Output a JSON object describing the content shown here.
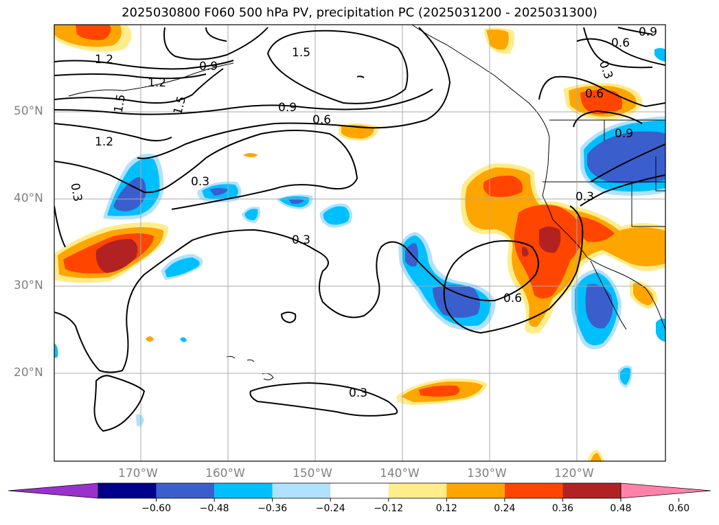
{
  "title": "2025030800 F060 500 hPa PV, precipitation PC (2025031200 - 2025031300)",
  "latitude_labels": [
    "50°N",
    "40°N",
    "30°N",
    "20°N"
  ],
  "longitude_labels": [
    "170°W",
    "160°W",
    "150°W",
    "140°W",
    "130°W",
    "120°W"
  ],
  "contour_labels": [
    "1.2",
    "1.2",
    "0.9",
    "1.5",
    "1.5",
    "1.5",
    "0.9",
    "0.6",
    "1.2",
    "0.3",
    "0.3",
    "0.3",
    "0.3",
    "0.6",
    "0.3",
    "0.6",
    "0.9",
    "0.3",
    "0.6",
    "0.9"
  ],
  "colorbar": {
    "ticks": [
      "−0.60",
      "−0.48",
      "−0.36",
      "−0.24",
      "−0.12",
      "0.12",
      "0.24",
      "0.36",
      "0.48",
      "0.60"
    ],
    "colors": [
      "#9932cc",
      "#00008b",
      "#3a5fcd",
      "#00bfff",
      "#b0e2ff",
      "#ffffff",
      "#ffec8b",
      "#ffa500",
      "#ff4500",
      "#b22222",
      "#ff82ab"
    ]
  },
  "shading_colors": {
    "pos_1": "#ffec8b",
    "pos_2": "#ffa500",
    "pos_3": "#ff4500",
    "pos_4": "#b22222",
    "neg_1": "#b0e2ff",
    "neg_2": "#00bfff",
    "neg_3": "#3a5fcd"
  }
}
